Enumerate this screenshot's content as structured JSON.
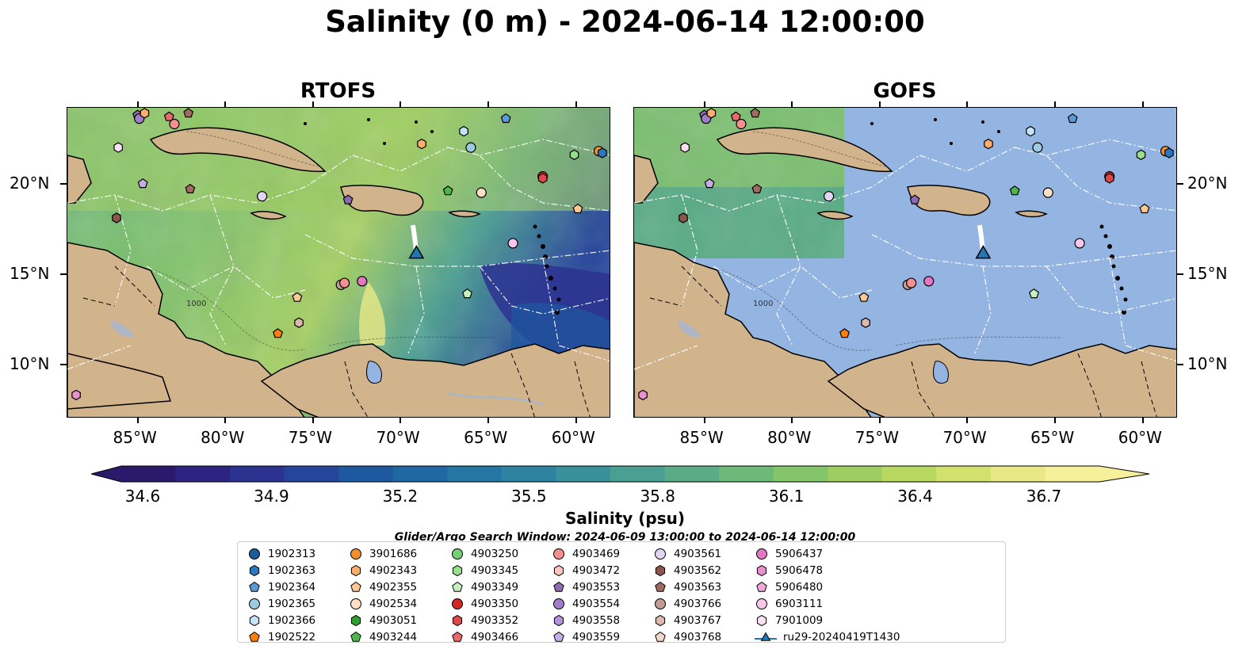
{
  "title": "Salinity (0 m) - 2024-06-14 12:00:00",
  "panels": {
    "left": {
      "title": "RTOFS"
    },
    "right": {
      "title": "GOFS"
    }
  },
  "axes": {
    "lon_labels": [
      "85°W",
      "80°W",
      "75°W",
      "70°W",
      "65°W",
      "60°W"
    ],
    "lat_labels": [
      "20°N",
      "15°N",
      "10°N"
    ],
    "lon_range": [
      -89,
      -58
    ],
    "lat_range": [
      7,
      24.2
    ],
    "lon_ticks": [
      -85,
      -80,
      -75,
      -70,
      -65,
      -60
    ],
    "lat_ticks": [
      20,
      15,
      10
    ],
    "contour_labels": [
      "1000",
      "1000",
      "1000",
      "1000"
    ]
  },
  "colorbar": {
    "label": "Salinity (psu)",
    "ticks": [
      "34.6",
      "34.9",
      "35.2",
      "35.5",
      "35.8",
      "36.1",
      "36.4",
      "36.7"
    ],
    "range": [
      34.6,
      36.7
    ],
    "extend": "both",
    "colors": [
      "#2b1a6b",
      "#2c2480",
      "#2b3290",
      "#24459a",
      "#1e589f",
      "#1f68a2",
      "#2576a3",
      "#2e84a0",
      "#39929b",
      "#4a9f92",
      "#5aac86",
      "#6cb979",
      "#84c46b",
      "#9fcd62",
      "#b9d862",
      "#d2e16c",
      "#e8e886",
      "#f6f09a"
    ]
  },
  "search_window": "Glider/Argo Search Window: 2024-06-09 13:00:00 to 2024-06-14 12:00:00",
  "land_color": "#d2b48c",
  "gofs_ocean_color": "#94b4e1",
  "legend": [
    {
      "id": "1902313",
      "marker": "circle",
      "color": "#1f5b9c"
    },
    {
      "id": "1902363",
      "marker": "hexagon",
      "color": "#2a78bf"
    },
    {
      "id": "1902364",
      "marker": "pentagon",
      "color": "#5a9bd5"
    },
    {
      "id": "1902365",
      "marker": "circle",
      "color": "#9ecae1"
    },
    {
      "id": "1902366",
      "marker": "hexagon",
      "color": "#c6e4f7"
    },
    {
      "id": "1902522",
      "marker": "pentagon",
      "color": "#ff7f0e"
    },
    {
      "id": "3901686",
      "marker": "circle",
      "color": "#f28e2b"
    },
    {
      "id": "4902343",
      "marker": "hexagon",
      "color": "#fdae6b"
    },
    {
      "id": "4902355",
      "marker": "pentagon",
      "color": "#fdc891"
    },
    {
      "id": "4902534",
      "marker": "circle",
      "color": "#fde0c5"
    },
    {
      "id": "4903051",
      "marker": "hexagon",
      "color": "#2ca02c"
    },
    {
      "id": "4903244",
      "marker": "pentagon",
      "color": "#4cb84c"
    },
    {
      "id": "4903250",
      "marker": "circle",
      "color": "#74d174"
    },
    {
      "id": "4903345",
      "marker": "hexagon",
      "color": "#98df8a"
    },
    {
      "id": "4903349",
      "marker": "pentagon",
      "color": "#c7f0bf"
    },
    {
      "id": "4903350",
      "marker": "circle",
      "color": "#d62728"
    },
    {
      "id": "4903352",
      "marker": "hexagon",
      "color": "#e0474a"
    },
    {
      "id": "4903466",
      "marker": "pentagon",
      "color": "#ed6a6c"
    },
    {
      "id": "4903469",
      "marker": "circle",
      "color": "#f4908f"
    },
    {
      "id": "4903472",
      "marker": "hexagon",
      "color": "#fbc4c2"
    },
    {
      "id": "4903553",
      "marker": "pentagon",
      "color": "#8c6bb1"
    },
    {
      "id": "4903554",
      "marker": "circle",
      "color": "#a07cc9"
    },
    {
      "id": "4903558",
      "marker": "hexagon",
      "color": "#b394d8"
    },
    {
      "id": "4903559",
      "marker": "pentagon",
      "color": "#c5aee6"
    },
    {
      "id": "4903561",
      "marker": "circle",
      "color": "#e2d4f3"
    },
    {
      "id": "4903562",
      "marker": "hexagon",
      "color": "#8c564b"
    },
    {
      "id": "4903563",
      "marker": "pentagon",
      "color": "#a06a5e"
    },
    {
      "id": "4903766",
      "marker": "circle",
      "color": "#c49c94"
    },
    {
      "id": "4903767",
      "marker": "hexagon",
      "color": "#ddb9ad"
    },
    {
      "id": "4903768",
      "marker": "pentagon",
      "color": "#f3d9cb"
    },
    {
      "id": "5906437",
      "marker": "circle",
      "color": "#e377c2"
    },
    {
      "id": "5906478",
      "marker": "hexagon",
      "color": "#ea90cf"
    },
    {
      "id": "5906480",
      "marker": "pentagon",
      "color": "#f2a8dc"
    },
    {
      "id": "6903111",
      "marker": "circle",
      "color": "#f7c6ea"
    },
    {
      "id": "7901009",
      "marker": "hexagon",
      "color": "#fbe1f4"
    },
    {
      "id": "ru29-20240419T1430",
      "marker": "triangle-line",
      "color": "#1f77b4"
    }
  ],
  "floats_on_map": [
    {
      "id": "4903553",
      "lon": -85.0,
      "lat": 23.8
    },
    {
      "id": "4903554",
      "lon": -84.9,
      "lat": 23.6
    },
    {
      "id": "4902343",
      "lon": -84.6,
      "lat": 23.9
    },
    {
      "id": "4903466",
      "lon": -83.2,
      "lat": 23.7
    },
    {
      "id": "4903563",
      "lon": -82.1,
      "lat": 23.9
    },
    {
      "id": "4903469",
      "lon": -82.9,
      "lat": 23.3
    },
    {
      "id": "7901009",
      "lon": -86.1,
      "lat": 22.0
    },
    {
      "id": "4903559",
      "lon": -84.7,
      "lat": 20.0
    },
    {
      "id": "4903563",
      "lon": -82.0,
      "lat": 19.7
    },
    {
      "id": "4903562",
      "lon": -86.2,
      "lat": 18.1
    },
    {
      "id": "4903561",
      "lon": -77.9,
      "lat": 19.3
    },
    {
      "id": "4903553",
      "lon": -73.0,
      "lat": 19.1
    },
    {
      "id": "4903244",
      "lon": -67.3,
      "lat": 19.6
    },
    {
      "id": "4902534",
      "lon": -65.4,
      "lat": 19.5
    },
    {
      "id": "4903350",
      "lon": -61.9,
      "lat": 20.4
    },
    {
      "id": "4903352",
      "lon": -61.9,
      "lat": 20.3
    },
    {
      "id": "4902355",
      "lon": -59.9,
      "lat": 18.6
    },
    {
      "id": "4903345",
      "lon": -60.1,
      "lat": 21.6
    },
    {
      "id": "3901686",
      "lon": -58.7,
      "lat": 21.8
    },
    {
      "id": "1902363",
      "lon": -58.5,
      "lat": 21.7
    },
    {
      "id": "1902366",
      "lon": -66.4,
      "lat": 22.9
    },
    {
      "id": "1902364",
      "lon": -64.0,
      "lat": 23.6
    },
    {
      "id": "1902365",
      "lon": -66.0,
      "lat": 22.0
    },
    {
      "id": "4902343",
      "lon": -68.8,
      "lat": 22.2
    },
    {
      "id": "6903111",
      "lon": -63.6,
      "lat": 16.7
    },
    {
      "id": "4903766",
      "lon": -73.4,
      "lat": 14.4
    },
    {
      "id": "4903469",
      "lon": -73.2,
      "lat": 14.5
    },
    {
      "id": "5906437",
      "lon": -72.2,
      "lat": 14.6
    },
    {
      "id": "4903349",
      "lon": -66.2,
      "lat": 13.9
    },
    {
      "id": "4902355",
      "lon": -75.9,
      "lat": 13.7
    },
    {
      "id": "4903767",
      "lon": -75.8,
      "lat": 12.3
    },
    {
      "id": "1902522",
      "lon": -77.0,
      "lat": 11.7
    },
    {
      "id": "5906478",
      "lon": -88.5,
      "lat": 8.3
    }
  ],
  "glider": {
    "id": "ru29-20240419T1430",
    "lon": -69.1,
    "lat": 16.1,
    "track": [
      [
        -69.3,
        17.7
      ],
      [
        -69.2,
        17.0
      ],
      [
        -69.1,
        16.1
      ]
    ]
  }
}
